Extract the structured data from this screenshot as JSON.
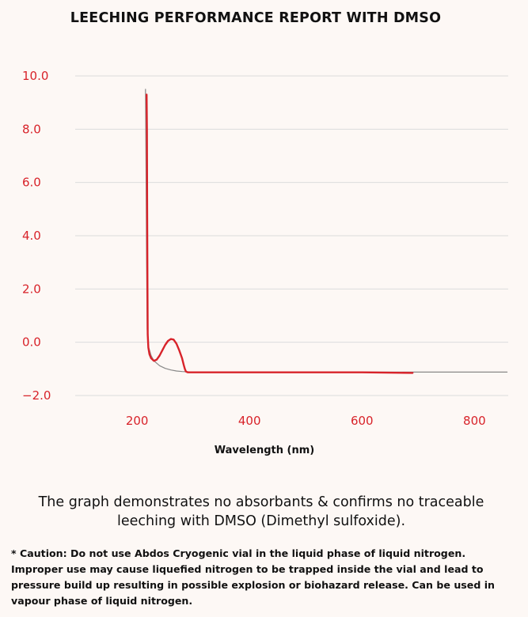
{
  "chart_data": {
    "type": "line",
    "title": "LEECHING PERFORMANCE REPORT WITH DMSO",
    "xlabel": "Wavelength (nm)",
    "ylabel": "",
    "xlim": [
      90,
      860
    ],
    "ylim": [
      -2.0,
      10.0
    ],
    "xticks": [
      200,
      400,
      600,
      800
    ],
    "yticks": [
      10.0,
      8.0,
      6.0,
      4.0,
      2.0,
      0.0,
      -2.0
    ],
    "ytick_labels": [
      "10.0",
      "8.0",
      "6.0",
      "4.0",
      "2.0",
      "0.0",
      "−2.0"
    ],
    "xtick_labels": [
      "200",
      "400",
      "600",
      "800"
    ],
    "grid": "horizontal",
    "legend": "none",
    "series": [
      {
        "color": "#888888",
        "x": [
          215,
          216,
          217,
          218,
          220,
          225,
          230,
          240,
          250,
          260,
          270,
          280,
          290,
          300,
          350,
          400,
          500,
          600,
          700,
          800,
          858
        ],
        "y": [
          9.5,
          6.5,
          3.0,
          0.5,
          -0.15,
          -0.5,
          -0.7,
          -0.88,
          -0.98,
          -1.04,
          -1.08,
          -1.1,
          -1.11,
          -1.12,
          -1.12,
          -1.12,
          -1.12,
          -1.12,
          -1.12,
          -1.12,
          -1.12
        ]
      },
      {
        "color": "#d8232a",
        "x": [
          217,
          217.5,
          218,
          218.5,
          219,
          220,
          222,
          225,
          230,
          235,
          240,
          245,
          250,
          255,
          260,
          265,
          270,
          275,
          280,
          283,
          285,
          287,
          290,
          300,
          400,
          500,
          600,
          690
        ],
        "y": [
          9.3,
          8.0,
          5.0,
          2.0,
          0.3,
          -0.2,
          -0.45,
          -0.6,
          -0.7,
          -0.65,
          -0.5,
          -0.3,
          -0.1,
          0.05,
          0.12,
          0.1,
          -0.05,
          -0.3,
          -0.6,
          -0.85,
          -1.0,
          -1.1,
          -1.13,
          -1.13,
          -1.13,
          -1.13,
          -1.13,
          -1.15
        ]
      }
    ]
  },
  "summary_text": "The graph demonstrates no absorbants & confirms no traceable leeching with DMSO (Dimethyl sulfoxide).",
  "caution_text": "* Caution: Do not use Abdos Cryogenic vial in the liquid phase of liquid nitrogen. Improper use may cause liquefied nitrogen to be trapped inside the vial and lead to pressure build up resulting in possible explosion or biohazard release. Can be used in vapour phase of liquid nitrogen."
}
